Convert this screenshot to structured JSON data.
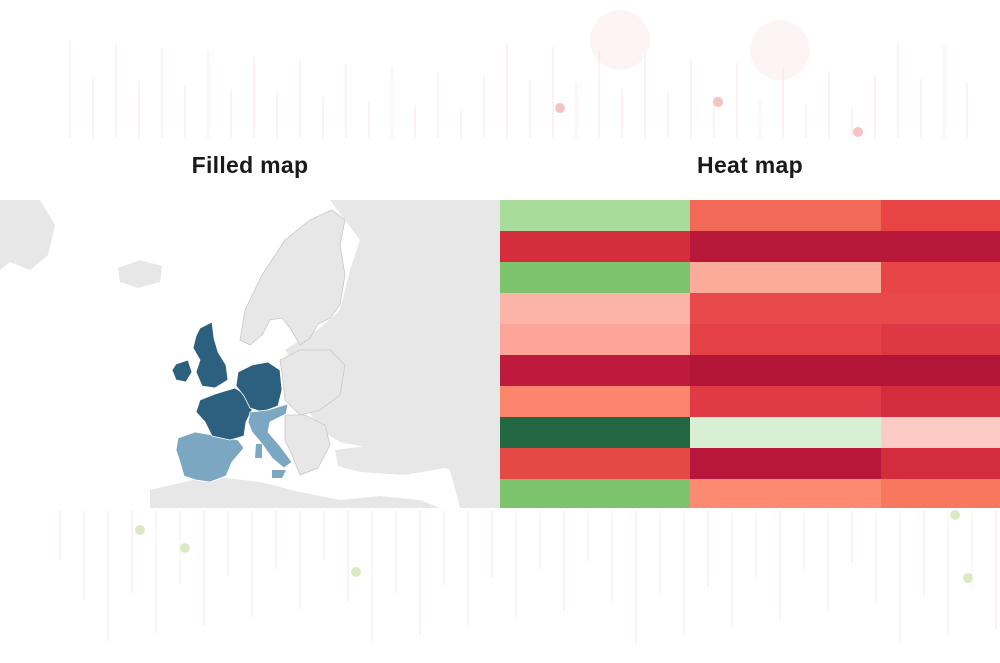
{
  "panels": {
    "left": {
      "title": "Filled map"
    },
    "right": {
      "title": "Heat map"
    }
  },
  "colors": {
    "dark_blue": "#2d5f7e",
    "light_blue": "#7ba7c2",
    "land_grey": "#e7e7e7",
    "border_grey": "#c9c9c9",
    "deco_red": "#e9868a",
    "deco_green": "#b9d58a"
  },
  "filled_map": {
    "region": "Europe",
    "highlighted_dark": [
      "United Kingdom",
      "Ireland",
      "France",
      "Germany",
      "Belgium",
      "Netherlands",
      "Luxembourg"
    ],
    "highlighted_light": [
      "Spain",
      "Portugal",
      "Italy",
      "Switzerland",
      "Austria"
    ]
  },
  "heat_map": {
    "rows": [
      [
        "#a8dc9b",
        "#f36958",
        "#e84345"
      ],
      [
        "#d42e3c",
        "#b8183a",
        "#b8183a"
      ],
      [
        "#7dc36d",
        "#fcaa9a",
        "#e74548"
      ],
      [
        "#fdb4a8",
        "#e8494a",
        "#e8494a"
      ],
      [
        "#fca598",
        "#e44147",
        "#dd3843"
      ],
      [
        "#be1a3d",
        "#b31538",
        "#b31538"
      ],
      [
        "#fb856c",
        "#e03b45",
        "#d22c3d"
      ],
      [
        "#226741",
        "#d8efd3",
        "#fecbc4"
      ],
      [
        "#e54946",
        "#b8163a",
        "#d22c3d"
      ],
      [
        "#7dc36d",
        "#fb8a72",
        "#f8775f"
      ]
    ],
    "column_widths": [
      190,
      191,
      119
    ]
  }
}
